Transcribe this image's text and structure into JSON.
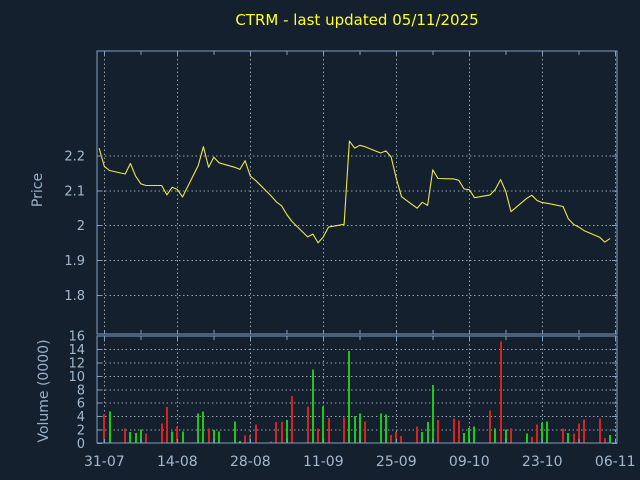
{
  "title": "CTRM - last updated 05/11/2025",
  "colors": {
    "background": "#14202d",
    "axis": "#7e9fc4",
    "grid": "#95a1ad",
    "tick_label": "#a2b8cf",
    "axis_label": "#97b1cc",
    "title": "#ffff2e",
    "price_line": "#ece64f",
    "volume_up": "#1dc71d",
    "volume_down": "#d42420"
  },
  "chart_data": {
    "type": "mixed",
    "title": "CTRM - last updated 05/11/2025",
    "grid": "dotted",
    "legend": "none",
    "x": {
      "dates": [
        "30-07",
        "31-07",
        "01-08",
        "04-08",
        "05-08",
        "06-08",
        "07-08",
        "08-08",
        "11-08",
        "12-08",
        "13-08",
        "14-08",
        "15-08",
        "18-08",
        "19-08",
        "20-08",
        "21-08",
        "22-08",
        "25-08",
        "26-08",
        "27-08",
        "28-08",
        "29-08",
        "01-09",
        "02-09",
        "03-09",
        "04-09",
        "05-09",
        "08-09",
        "09-09",
        "10-09",
        "11-09",
        "12-09",
        "15-09",
        "16-09",
        "17-09",
        "18-09",
        "19-09",
        "22-09",
        "23-09",
        "24-09",
        "25-09",
        "26-09",
        "29-09",
        "30-09",
        "01-10",
        "02-10",
        "03-10",
        "06-10",
        "07-10",
        "08-10",
        "09-10",
        "10-10",
        "13-10",
        "14-10",
        "15-10",
        "16-10",
        "17-10",
        "20-10",
        "21-10",
        "22-10",
        "23-10",
        "24-10",
        "27-10",
        "28-10",
        "29-10",
        "30-10",
        "31-10",
        "03-11",
        "04-11",
        "05-11"
      ],
      "day_offsets": [
        0,
        1,
        2,
        5,
        6,
        7,
        8,
        9,
        12,
        13,
        14,
        15,
        16,
        19,
        20,
        21,
        22,
        23,
        26,
        27,
        28,
        29,
        30,
        33,
        34,
        35,
        36,
        37,
        40,
        41,
        42,
        43,
        44,
        47,
        48,
        49,
        50,
        51,
        54,
        55,
        56,
        57,
        58,
        61,
        62,
        63,
        64,
        65,
        68,
        69,
        70,
        71,
        72,
        75,
        76,
        77,
        78,
        79,
        82,
        83,
        84,
        85,
        86,
        89,
        90,
        91,
        92,
        93,
        96,
        97,
        98
      ],
      "tick_labels": [
        "31-07",
        "14-08",
        "28-08",
        "11-09",
        "25-09",
        "09-10",
        "23-10",
        "06-11"
      ],
      "tick_day_offsets": [
        1,
        15,
        29,
        43,
        57,
        71,
        85,
        99
      ],
      "minor_tick_day_offsets": [
        8,
        22,
        36,
        50,
        64,
        78,
        92
      ]
    },
    "panels": [
      {
        "type": "line",
        "name": "price",
        "ylabel": "Price",
        "ylim": [
          1.69,
          2.5
        ],
        "ytick_labels": [
          "2.2",
          "2.1",
          "2",
          "1.9",
          "1.8"
        ],
        "ytick_values": [
          2.2,
          2.1,
          2.0,
          1.9,
          1.8
        ],
        "series": [
          {
            "name": "close",
            "values": [
              2.222,
              2.17,
              2.158,
              2.148,
              2.178,
              2.142,
              2.12,
              2.115,
              2.115,
              2.088,
              2.11,
              2.104,
              2.082,
              2.172,
              2.226,
              2.167,
              2.196,
              2.18,
              2.167,
              2.161,
              2.186,
              2.142,
              2.13,
              2.085,
              2.068,
              2.057,
              2.032,
              2.012,
              1.968,
              1.976,
              1.951,
              1.968,
              1.996,
              2.004,
              2.242,
              2.222,
              2.23,
              2.226,
              2.208,
              2.214,
              2.197,
              2.135,
              2.083,
              2.05,
              2.067,
              2.058,
              2.16,
              2.135,
              2.134,
              2.13,
              2.105,
              2.103,
              2.08,
              2.088,
              2.104,
              2.132,
              2.098,
              2.04,
              2.078,
              2.087,
              2.072,
              2.066,
              2.064,
              2.055,
              2.02,
              2.004,
              1.996,
              1.986,
              1.967,
              1.953,
              1.963
            ]
          }
        ]
      },
      {
        "type": "bar",
        "name": "volume",
        "ylabel": "Volume (0000)",
        "ylim": [
          0,
          16
        ],
        "ytick_labels": [
          "16",
          "14",
          "12",
          "10",
          "8",
          "6",
          "4",
          "2",
          "0"
        ],
        "ytick_values": [
          16,
          14,
          12,
          10,
          8,
          6,
          4,
          2,
          0
        ],
        "series": [
          {
            "name": "volume",
            "values": [
              0.0,
              4.4,
              4.8,
              2.2,
              1.7,
              1.6,
              2.1,
              1.5,
              3.0,
              5.4,
              1.8,
              2.5,
              1.8,
              4.5,
              4.8,
              2.2,
              2.0,
              1.8,
              3.3,
              0.4,
              1.2,
              1.3,
              2.8,
              0.3,
              3.2,
              3.2,
              3.5,
              7.1,
              5.5,
              11.0,
              2.2,
              5.5,
              3.8,
              3.9,
              13.8,
              4.1,
              4.5,
              3.3,
              4.5,
              4.3,
              1.3,
              1.7,
              1.1,
              2.5,
              1.7,
              3.2,
              8.7,
              3.5,
              3.7,
              3.4,
              1.6,
              2.3,
              2.5,
              4.9,
              2.2,
              15.2,
              2.1,
              2.2,
              1.5,
              1.0,
              2.8,
              3.1,
              3.3,
              2.2,
              1.6,
              1.5,
              3.0,
              3.6,
              3.7,
              0.8,
              1.3
            ],
            "colors": [
              "g",
              "r",
              "g",
              "r",
              "g",
              "g",
              "g",
              "r",
              "r",
              "r",
              "g",
              "r",
              "g",
              "g",
              "g",
              "r",
              "g",
              "g",
              "g",
              "g",
              "r",
              "r",
              "r",
              "r",
              "r",
              "r",
              "g",
              "r",
              "r",
              "g",
              "r",
              "g",
              "r",
              "r",
              "g",
              "g",
              "g",
              "r",
              "g",
              "g",
              "r",
              "r",
              "r",
              "r",
              "g",
              "g",
              "g",
              "r",
              "r",
              "r",
              "g",
              "g",
              "g",
              "r",
              "g",
              "r",
              "g",
              "r",
              "g",
              "r",
              "r",
              "g",
              "g",
              "r",
              "g",
              "r",
              "r",
              "r",
              "r",
              "r",
              "g"
            ]
          }
        ]
      }
    ]
  }
}
